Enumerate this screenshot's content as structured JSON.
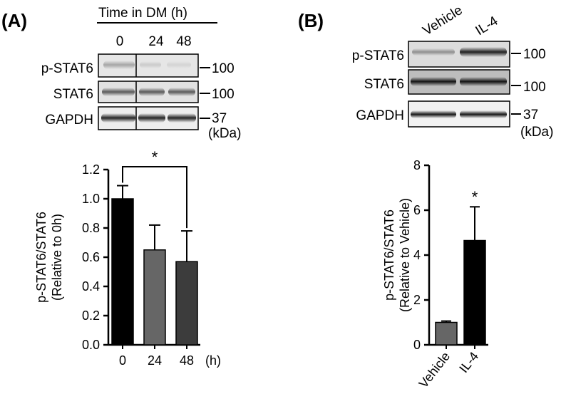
{
  "panels": {
    "A": {
      "label": "(A)",
      "blot": {
        "header": "Time in DM (h)",
        "lanes": [
          "0",
          "24",
          "48"
        ],
        "rows": [
          "p-STAT6",
          "STAT6",
          "GAPDH"
        ],
        "markers": [
          "100",
          "100",
          "37"
        ],
        "unit": "(kDa)"
      }
    },
    "B": {
      "label": "(B)",
      "blot": {
        "lanes": [
          "Vehicle",
          "IL-4"
        ],
        "rows": [
          "p-STAT6",
          "STAT6",
          "GAPDH"
        ],
        "markers": [
          "100",
          "100",
          "37"
        ],
        "unit": "(kDa)"
      }
    }
  },
  "chart_data": [
    {
      "type": "bar",
      "panel": "A",
      "categories": [
        "0",
        "24",
        "48"
      ],
      "x_unit": "(h)",
      "values": [
        1.0,
        0.65,
        0.57
      ],
      "errors": [
        0.09,
        0.17,
        0.21
      ],
      "colors": [
        "#000000",
        "#666666",
        "#3c3c3c"
      ],
      "ylabel_line1": "p-STAT6/STAT6",
      "ylabel_line2": "(Relative to 0h)",
      "ylim": [
        0,
        1.2
      ],
      "yticks": [
        "0.0",
        "0.2",
        "0.4",
        "0.6",
        "0.8",
        "1.0",
        "1.2"
      ],
      "significance": {
        "from": "0",
        "to": "48",
        "label": "*"
      }
    },
    {
      "type": "bar",
      "panel": "B",
      "categories": [
        "Vehicle",
        "IL-4"
      ],
      "values": [
        1.0,
        4.65
      ],
      "errors": [
        0.06,
        1.5
      ],
      "colors": [
        "#666666",
        "#000000"
      ],
      "ylabel_line1": "p-STAT6/STAT6",
      "ylabel_line2": "(Relative to Vehicle)",
      "ylim": [
        0,
        8
      ],
      "yticks": [
        "0",
        "2",
        "4",
        "6",
        "8"
      ],
      "significance": {
        "on": "IL-4",
        "label": "*"
      }
    }
  ]
}
